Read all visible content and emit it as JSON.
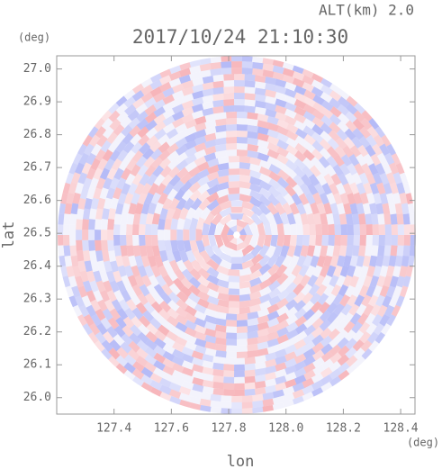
{
  "chart_data": {
    "type": "radar-image",
    "title": "2017/10/24 21:10:30",
    "altitude_label": "ALT(km) 2.0",
    "x_label": "lon",
    "y_label": "lat",
    "x_unit": "(deg)",
    "y_unit": "(deg)",
    "xlim": [
      127.2,
      128.45
    ],
    "ylim": [
      25.95,
      27.04
    ],
    "xticks": [
      {
        "value": 127.4,
        "label": "127.4"
      },
      {
        "value": 127.6,
        "label": "127.6"
      },
      {
        "value": 127.8,
        "label": "127.8"
      },
      {
        "value": 128.0,
        "label": "128.0"
      },
      {
        "value": 128.2,
        "label": "128.2"
      },
      {
        "value": 128.4,
        "label": "128.4"
      }
    ],
    "yticks": [
      {
        "value": 26.0,
        "label": "26.0"
      },
      {
        "value": 26.1,
        "label": "26.1"
      },
      {
        "value": 26.2,
        "label": "26.2"
      },
      {
        "value": 26.3,
        "label": "26.3"
      },
      {
        "value": 26.4,
        "label": "26.4"
      },
      {
        "value": 26.5,
        "label": "26.5"
      },
      {
        "value": 26.6,
        "label": "26.6"
      },
      {
        "value": 26.7,
        "label": "26.7"
      },
      {
        "value": 26.8,
        "label": "26.8"
      },
      {
        "value": 26.9,
        "label": "26.9"
      },
      {
        "value": 27.0,
        "label": "27.0"
      }
    ]
  }
}
